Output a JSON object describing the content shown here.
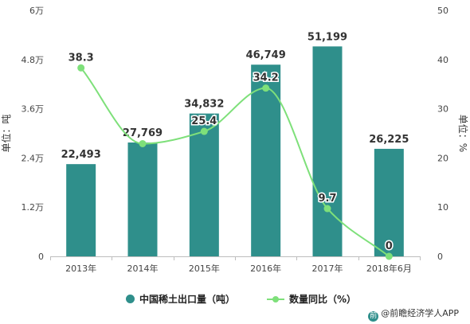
{
  "chart_data": {
    "type": "bar",
    "categories": [
      "2013年",
      "2014年",
      "2015年",
      "2016年",
      "2017年",
      "2018年6月"
    ],
    "series": [
      {
        "name": "中国稀土出口量（吨）",
        "type": "bar",
        "axis": "left",
        "color": "#2f8f8b",
        "values": [
          22493,
          27769,
          34832,
          46749,
          51199,
          26225
        ],
        "labels": [
          "22,493",
          "27,769",
          "34,832",
          "46,749",
          "51,199",
          "26,225"
        ]
      },
      {
        "name": "数量同比（%）",
        "type": "line",
        "axis": "right",
        "color": "#7ee07a",
        "values": [
          38.3,
          22.9,
          25.4,
          34.2,
          9.7,
          0
        ],
        "labels": [
          "38.3",
          "",
          "25.4",
          "34.2",
          "9.7",
          "0"
        ]
      }
    ],
    "ylabel": "单位：吨",
    "y2label": "单位：%",
    "ylim": [
      0,
      60000
    ],
    "y2lim": [
      0,
      50
    ],
    "yticks": [
      "0",
      "1.2万",
      "2.4万",
      "3.6万",
      "4.8万",
      "6万"
    ],
    "y2ticks": [
      "0",
      "10",
      "20",
      "30",
      "40",
      "50"
    ],
    "legend_position": "bottom"
  },
  "legend": {
    "bar_label": "中国稀土出口量（吨）",
    "line_label": "数量同比（%）"
  },
  "source": "@前瞻经济学人APP",
  "source_icon": "前"
}
